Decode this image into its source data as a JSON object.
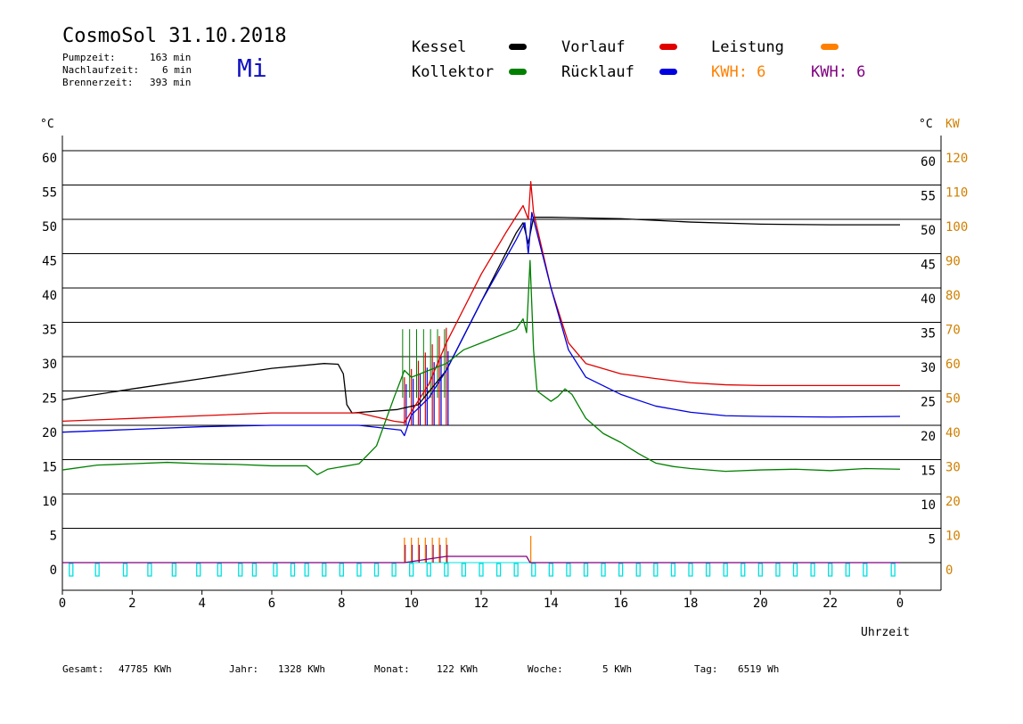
{
  "header": {
    "title": "CosmoSol 31.10.2018",
    "weekday": "Mi",
    "stats": [
      {
        "label": "Pumpzeit:",
        "value": "163 min"
      },
      {
        "label": "Nachlaufzeit:",
        "value": "6 min"
      },
      {
        "label": "Brennerzeit:",
        "value": "393 min"
      }
    ]
  },
  "legend": {
    "kessel": "Kessel",
    "kollektor": "Kollektor",
    "vorlauf": "Vorlauf",
    "ruecklauf": "Rücklauf",
    "leistung": "Leistung",
    "kwh_orange": "KWH: 6",
    "kwh_purple": "KWH: 6"
  },
  "colors": {
    "kessel": "#000000",
    "kollektor": "#008000",
    "vorlauf": "#e00000",
    "ruecklauf": "#0000e0",
    "leistung": "#ff8000",
    "kwh_purple": "#800080",
    "pump": "#00e0e0",
    "kw_axis": "#d08000"
  },
  "axes": {
    "left_unit": "°C",
    "right_unit": "°C",
    "kw_unit": "KW",
    "xlabel": "Uhrzeit"
  },
  "footer": [
    {
      "label": "Gesamt:",
      "value": "47785 KWh"
    },
    {
      "label": "Jahr:",
      "value": "1328 KWh"
    },
    {
      "label": "Monat:",
      "value": "122 KWh"
    },
    {
      "label": "Woche:",
      "value": "5 KWh"
    },
    {
      "label": "Tag:",
      "value": "6519 Wh"
    }
  ],
  "chart_data": {
    "type": "line",
    "xlim": [
      0,
      24
    ],
    "ylim": [
      0,
      60
    ],
    "kw_ylim": [
      0,
      120
    ],
    "x_ticks": [
      "0",
      "2",
      "4",
      "6",
      "8",
      "10",
      "12",
      "14",
      "16",
      "18",
      "20",
      "22",
      "0"
    ],
    "y_ticks_left": [
      "0",
      "5",
      "10",
      "15",
      "20",
      "25",
      "30",
      "35",
      "40",
      "45",
      "50",
      "55",
      "60"
    ],
    "y_ticks_right": [
      "5",
      "10",
      "15",
      "20",
      "25",
      "30",
      "35",
      "40",
      "45",
      "50",
      "55",
      "60"
    ],
    "y_ticks_kw": [
      "0",
      "10",
      "20",
      "30",
      "40",
      "50",
      "60",
      "70",
      "80",
      "90",
      "100",
      "110",
      "120"
    ],
    "grid": "horizontal",
    "series": [
      {
        "name": "Kessel",
        "key": "kessel",
        "points": [
          [
            0,
            23.7
          ],
          [
            2,
            25.3
          ],
          [
            4,
            26.8
          ],
          [
            6,
            28.3
          ],
          [
            7.5,
            29
          ],
          [
            7.9,
            28.9
          ],
          [
            8.05,
            27.5
          ],
          [
            8.15,
            23
          ],
          [
            8.3,
            21.8
          ],
          [
            9.6,
            22.3
          ],
          [
            10.2,
            23
          ],
          [
            11,
            28
          ],
          [
            12,
            38
          ],
          [
            13,
            48
          ],
          [
            13.2,
            49.5
          ],
          [
            13.35,
            46.5
          ],
          [
            13.5,
            50.3
          ],
          [
            14,
            50.3
          ],
          [
            16,
            50.1
          ],
          [
            18,
            49.6
          ],
          [
            20,
            49.3
          ],
          [
            22,
            49.2
          ],
          [
            24,
            49.2
          ]
        ]
      },
      {
        "name": "Vorlauf",
        "key": "vorlauf",
        "points": [
          [
            0,
            20.6
          ],
          [
            2,
            21
          ],
          [
            4,
            21.4
          ],
          [
            6,
            21.8
          ],
          [
            8.5,
            21.8
          ],
          [
            9.5,
            20.6
          ],
          [
            9.8,
            20.4
          ],
          [
            10,
            22
          ],
          [
            10.5,
            26
          ],
          [
            11,
            32
          ],
          [
            11.3,
            35
          ],
          [
            12,
            42
          ],
          [
            12.7,
            48
          ],
          [
            13.2,
            52
          ],
          [
            13.35,
            50
          ],
          [
            13.42,
            55.5
          ],
          [
            13.5,
            51
          ],
          [
            14,
            40
          ],
          [
            14.5,
            32
          ],
          [
            15,
            29
          ],
          [
            16,
            27.5
          ],
          [
            17,
            26.8
          ],
          [
            18,
            26.2
          ],
          [
            19,
            25.9
          ],
          [
            20,
            25.8
          ],
          [
            22,
            25.8
          ],
          [
            24,
            25.8
          ]
        ]
      },
      {
        "name": "Rücklauf",
        "key": "ruecklauf",
        "points": [
          [
            0,
            19
          ],
          [
            2,
            19.4
          ],
          [
            4,
            19.8
          ],
          [
            6,
            20
          ],
          [
            8.5,
            20
          ],
          [
            9.7,
            19.3
          ],
          [
            9.8,
            18.5
          ],
          [
            10,
            21.5
          ],
          [
            10.5,
            24
          ],
          [
            11,
            28
          ],
          [
            12,
            38
          ],
          [
            13,
            47
          ],
          [
            13.25,
            49.5
          ],
          [
            13.35,
            45
          ],
          [
            13.45,
            51
          ],
          [
            13.6,
            48
          ],
          [
            14,
            40
          ],
          [
            14.5,
            31
          ],
          [
            15,
            27
          ],
          [
            16,
            24.5
          ],
          [
            17,
            22.8
          ],
          [
            18,
            21.9
          ],
          [
            19,
            21.4
          ],
          [
            20,
            21.3
          ],
          [
            22,
            21.2
          ],
          [
            24,
            21.3
          ]
        ]
      },
      {
        "name": "Kollektor",
        "key": "kollektor",
        "points": [
          [
            0,
            13.5
          ],
          [
            1,
            14.2
          ],
          [
            2,
            14.4
          ],
          [
            3,
            14.6
          ],
          [
            4,
            14.4
          ],
          [
            5,
            14.3
          ],
          [
            6,
            14.1
          ],
          [
            7,
            14.1
          ],
          [
            7.3,
            12.8
          ],
          [
            7.6,
            13.6
          ],
          [
            8.5,
            14.4
          ],
          [
            9,
            17
          ],
          [
            9.5,
            24
          ],
          [
            9.8,
            28
          ],
          [
            10,
            27
          ],
          [
            10.5,
            28
          ],
          [
            11,
            29
          ],
          [
            11.5,
            31
          ],
          [
            12,
            32
          ],
          [
            12.5,
            33
          ],
          [
            13,
            34
          ],
          [
            13.2,
            35.5
          ],
          [
            13.3,
            33.5
          ],
          [
            13.4,
            44
          ],
          [
            13.5,
            31
          ],
          [
            13.6,
            25
          ],
          [
            14,
            23.5
          ],
          [
            14.2,
            24.2
          ],
          [
            14.4,
            25.3
          ],
          [
            14.6,
            24.5
          ],
          [
            15,
            21
          ],
          [
            15.5,
            18.8
          ],
          [
            16,
            17.5
          ],
          [
            16.5,
            15.9
          ],
          [
            17,
            14.5
          ],
          [
            17.5,
            14
          ],
          [
            18,
            13.7
          ],
          [
            19,
            13.3
          ],
          [
            20,
            13.5
          ],
          [
            21,
            13.6
          ],
          [
            22,
            13.4
          ],
          [
            23,
            13.7
          ],
          [
            24,
            13.6
          ]
        ]
      },
      {
        "name": "Leistung",
        "key": "leistung",
        "points": [
          [
            0,
            0
          ],
          [
            9.8,
            0
          ],
          [
            11,
            1
          ],
          [
            13.3,
            1
          ],
          [
            13.4,
            0
          ],
          [
            24,
            0
          ]
        ]
      }
    ]
  }
}
